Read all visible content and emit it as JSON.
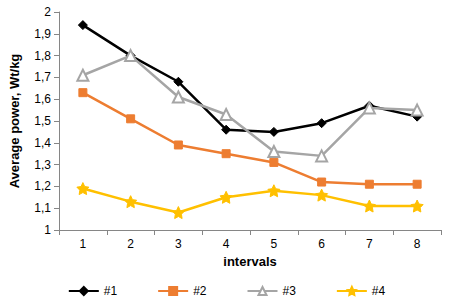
{
  "chart_data": {
    "type": "line",
    "x_label": "intervals",
    "y_label": "Average power, Wt/kg",
    "categories": [
      "1",
      "2",
      "3",
      "4",
      "5",
      "6",
      "7",
      "8"
    ],
    "series": [
      {
        "name": "#1",
        "color": "#000000",
        "marker": "diamond",
        "values": [
          1.94,
          1.8,
          1.68,
          1.46,
          1.45,
          1.49,
          1.57,
          1.52
        ]
      },
      {
        "name": "#2",
        "color": "#ed7d31",
        "marker": "square",
        "values": [
          1.63,
          1.51,
          1.39,
          1.35,
          1.31,
          1.22,
          1.21,
          1.21
        ]
      },
      {
        "name": "#3",
        "color": "#a5a5a5",
        "marker": "triangle",
        "values": [
          1.71,
          1.8,
          1.61,
          1.53,
          1.36,
          1.34,
          1.56,
          1.55
        ]
      },
      {
        "name": "#4",
        "color": "#ffc000",
        "marker": "star",
        "values": [
          1.19,
          1.13,
          1.08,
          1.15,
          1.18,
          1.16,
          1.11,
          1.11
        ]
      }
    ],
    "ylim": [
      1,
      2
    ],
    "yticks": [
      1,
      {
        "value": 1.1,
        "label": "1,1"
      },
      {
        "value": 1.2,
        "label": "1,2"
      },
      {
        "value": 1.3,
        "label": "1,3"
      },
      {
        "value": 1.4,
        "label": "1,4"
      },
      {
        "value": 1.5,
        "label": "1,5"
      },
      {
        "value": 1.6,
        "label": "1,6"
      },
      {
        "value": 1.7,
        "label": "1,7"
      },
      {
        "value": 1.8,
        "label": "1,8"
      },
      {
        "value": 1.9,
        "label": "1,9"
      },
      2
    ],
    "grid": false,
    "legend": "bottom"
  }
}
